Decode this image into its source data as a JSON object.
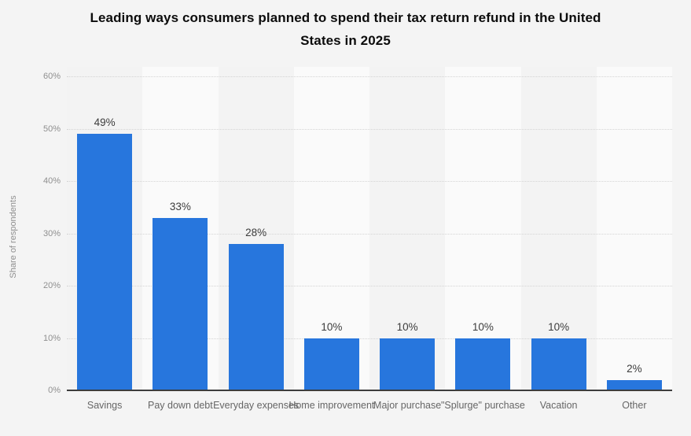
{
  "page": {
    "background": "#f4f4f4"
  },
  "chart_data": {
    "type": "bar",
    "title": "Leading ways consumers planned to spend their tax return refund in the United States in 2025",
    "title_lines": [
      "Leading ways consumers planned to spend their tax return refund in the United",
      "States in 2025"
    ],
    "xlabel": "",
    "ylabel": "Share of respondents",
    "categories": [
      "Savings",
      "Pay down debt",
      "Everyday expenses",
      "Home improvement",
      "Major purchase",
      "\"Splurge\" purchase",
      "Vacation",
      "Other"
    ],
    "values": [
      49,
      33,
      28,
      10,
      10,
      10,
      10,
      2
    ],
    "data_labels": [
      "49%",
      "33%",
      "28%",
      "10%",
      "10%",
      "10%",
      "10%",
      "2%"
    ],
    "y_ticks": [
      0,
      10,
      20,
      30,
      40,
      50,
      60
    ],
    "y_tick_labels": [
      "0%",
      "10%",
      "20%",
      "30%",
      "40%",
      "50%",
      "60%"
    ],
    "ylim": [
      0,
      60
    ],
    "grid": "horizontal-dotted",
    "legend": "none",
    "bar_color": "#2776dd",
    "axis_line_color": "#3d3d3d",
    "gridline_color": "#d4d4d4",
    "plot_band_colors": [
      "#f3f3f3",
      "#fafafa"
    ]
  }
}
